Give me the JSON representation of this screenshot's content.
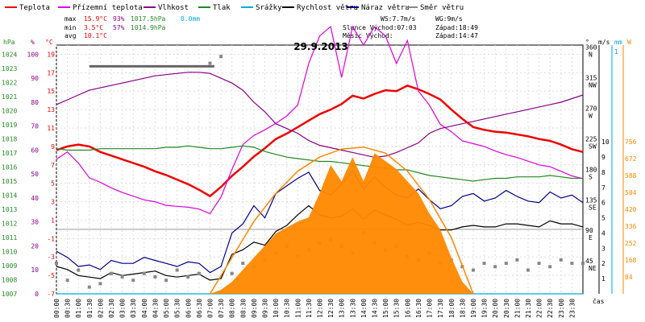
{
  "legend": [
    {
      "label": "Teplota",
      "color": "#ee0000"
    },
    {
      "label": "Přízemní teplota",
      "color": "#dd00dd"
    },
    {
      "label": "Vlhkost",
      "color": "#880088"
    },
    {
      "label": "Tlak",
      "color": "#228822"
    },
    {
      "label": "Srážky",
      "color": "#00aadd"
    },
    {
      "label": "Rychlost větru",
      "color": "#000000"
    },
    {
      "label": "Náraz větru",
      "color": "#000088"
    },
    {
      "label": "Směr větru",
      "color": "#888888"
    }
  ],
  "stats": {
    "max_label": "max",
    "max_temp": "15.9°C",
    "max_hum": "93%",
    "max_press": "1017.5hPa",
    "max_rain": "0.0mm",
    "min_label": "min",
    "min_temp": "3.5°C",
    "min_hum": "57%",
    "min_press": "1014.9hPa",
    "avg_label": "avg",
    "avg_temp": "10.1°C"
  },
  "wind_info": {
    "ws": "WS:7.7m/s",
    "wg": "WG:9m/s"
  },
  "sun_info": {
    "sunrise": "Slunce Východ:07:03",
    "sunset": "Západ:18:49"
  },
  "moon_info": {
    "moonrise": "Měsíc  Východ:",
    "moonset": "Západ:14:47"
  },
  "date_title": "29.9.2013",
  "axis_units": {
    "hpa": "hPa",
    "pct": "%",
    "degc": "°C",
    "deg": "°",
    "ms": "m/s",
    "mm": "mm",
    "w": "W",
    "time": "čas"
  },
  "chart_data": {
    "type": "line",
    "title": "29.9.2013",
    "x_ticks": [
      "00:00",
      "00:30",
      "01:00",
      "01:30",
      "02:00",
      "02:30",
      "03:00",
      "03:30",
      "04:00",
      "04:30",
      "05:00",
      "05:30",
      "06:00",
      "06:30",
      "07:00",
      "07:30",
      "08:00",
      "08:30",
      "09:00",
      "09:30",
      "10:00",
      "10:30",
      "11:00",
      "11:30",
      "12:00",
      "12:30",
      "13:00",
      "13:30",
      "14:00",
      "14:30",
      "15:00",
      "15:30",
      "16:00",
      "16:30",
      "17:00",
      "17:30",
      "18:00",
      "18:30",
      "19:00",
      "19:30",
      "20:00",
      "20:30",
      "21:00",
      "21:30",
      "22:00",
      "22:30",
      "23:00",
      "23:30"
    ],
    "axes": {
      "hpa": {
        "ticks": [
          1024,
          1023,
          1022,
          1021,
          1020,
          1019,
          1018,
          1017,
          1016,
          1015,
          1014,
          1013,
          1012,
          1011,
          1010,
          1009,
          1008,
          1007
        ],
        "ylim": [
          1007,
          1024
        ]
      },
      "pct": {
        "ticks": [
          100,
          90,
          80,
          70,
          60,
          50,
          40,
          30,
          20,
          10,
          0
        ],
        "ylim": [
          0,
          100
        ]
      },
      "temp": {
        "ticks": [
          19,
          17,
          15,
          13,
          11,
          9,
          7,
          5,
          3,
          1,
          -1,
          -3,
          -5,
          -7
        ],
        "ylim": [
          -7,
          20
        ]
      },
      "dir": {
        "ticks": [
          "360 N",
          "315 NW",
          "270 W",
          "225 SW",
          "180 S",
          "135 SE",
          "90 E",
          "45 NE"
        ]
      },
      "ms": {
        "ticks": [
          10,
          9,
          8,
          7,
          6,
          5,
          4,
          3,
          2,
          1
        ],
        "ylim": [
          0,
          10
        ]
      },
      "mm": {
        "ticks": [
          1
        ],
        "ylim": [
          0,
          1
        ]
      },
      "w": {
        "ticks": [
          756,
          672,
          588,
          504,
          420,
          336,
          252,
          168,
          84
        ],
        "ylim": [
          0,
          800
        ]
      }
    },
    "series": [
      {
        "name": "Teplota",
        "color": "#ee0000",
        "axis": "temp",
        "x": [
          0,
          0.5,
          1,
          1.5,
          2,
          2.5,
          3,
          3.5,
          4,
          4.5,
          5,
          5.5,
          6,
          6.5,
          7,
          7.5,
          8,
          8.5,
          9,
          9.5,
          10,
          10.5,
          11,
          11.5,
          12,
          12.5,
          13,
          13.5,
          14,
          14.5,
          15,
          15.5,
          16,
          16.5,
          17,
          17.5,
          18,
          18.5,
          19,
          19.5,
          20,
          20.5,
          21,
          21.5,
          22,
          22.5,
          23,
          23.5,
          24
        ],
        "y": [
          8.6,
          9,
          9.2,
          9,
          8.4,
          8,
          7.6,
          7.2,
          6.8,
          6.3,
          5.9,
          5.4,
          4.9,
          4.3,
          3.6,
          4.6,
          5.8,
          6.8,
          7.9,
          8.8,
          9.8,
          10.4,
          11.1,
          11.8,
          12.5,
          13,
          13.6,
          14.5,
          14.2,
          14.7,
          15.1,
          15,
          15.6,
          15.2,
          14.7,
          14.1,
          13,
          12,
          11.1,
          10.8,
          10.6,
          10.5,
          10.3,
          10.1,
          9.8,
          9.6,
          9.2,
          8.7,
          8.4
        ]
      },
      {
        "name": "Přízemní teplota",
        "color": "#dd00dd",
        "axis": "temp",
        "x": [
          0,
          0.5,
          1,
          1.5,
          2,
          2.5,
          3,
          3.5,
          4,
          4.5,
          5,
          5.5,
          6,
          6.5,
          7,
          7.5,
          8,
          8.5,
          9,
          9.5,
          10,
          10.5,
          11,
          11.5,
          12,
          12.5,
          13,
          13.5,
          14,
          14.5,
          15,
          15.5,
          16,
          16.5,
          17,
          17.5,
          18,
          18.5,
          19,
          19.5,
          20,
          20.5,
          21,
          21.5,
          22,
          22.5,
          23,
          23.5,
          24
        ],
        "y": [
          7.6,
          8.4,
          7.2,
          5.6,
          5.1,
          4.5,
          4,
          3.6,
          3.2,
          3,
          2.6,
          2.5,
          2.4,
          2.2,
          1.7,
          3.5,
          6.5,
          9.2,
          10.2,
          10.8,
          11.5,
          12.3,
          13.5,
          18,
          21,
          22,
          16.5,
          22,
          20,
          22,
          21,
          18,
          20.5,
          15,
          13.5,
          11.4,
          10.6,
          9.6,
          9.3,
          9,
          8.5,
          8.1,
          7.8,
          7.4,
          7,
          6.8,
          6.3,
          5.8,
          5.5
        ]
      },
      {
        "name": "Vlhkost",
        "color": "#880088",
        "axis": "pct",
        "x": [
          0,
          0.5,
          1,
          1.5,
          2,
          2.5,
          3,
          3.5,
          4,
          4.5,
          5,
          5.5,
          6,
          6.5,
          7,
          7.5,
          8,
          8.5,
          9,
          9.5,
          10,
          10.5,
          11,
          11.5,
          12,
          12.5,
          13,
          13.5,
          14,
          14.5,
          15,
          15.5,
          16,
          16.5,
          17,
          17.5,
          18,
          18.5,
          19,
          19.5,
          20,
          20.5,
          21,
          21.5,
          22,
          22.5,
          23,
          23.5,
          24
        ],
        "y": [
          79,
          81,
          83,
          85,
          86,
          87,
          88,
          89,
          90,
          91,
          91.5,
          92,
          92.5,
          92.5,
          92,
          90,
          88,
          85,
          80,
          76,
          71,
          69,
          67,
          64,
          62,
          61,
          60,
          59,
          58,
          57,
          57.5,
          59,
          61,
          63,
          67,
          69,
          70,
          71,
          72,
          73,
          74,
          75,
          76,
          77,
          78,
          79,
          80,
          81.5,
          83
        ]
      },
      {
        "name": "Tlak",
        "color": "#228822",
        "axis": "hpa",
        "x": [
          0,
          0.5,
          1,
          1.5,
          2,
          2.5,
          3,
          3.5,
          4,
          4.5,
          5,
          5.5,
          6,
          6.5,
          7,
          7.5,
          8,
          8.5,
          9,
          9.5,
          10,
          10.5,
          11,
          11.5,
          12,
          12.5,
          13,
          13.5,
          14,
          14.5,
          15,
          15.5,
          16,
          16.5,
          17,
          17.5,
          18,
          18.5,
          19,
          19.5,
          20,
          20.5,
          21,
          21.5,
          22,
          22.5,
          23,
          23.5,
          24
        ],
        "y": [
          1017.3,
          1017.2,
          1017.2,
          1017.2,
          1017.3,
          1017.3,
          1017.3,
          1017.3,
          1017.3,
          1017.3,
          1017.4,
          1017.4,
          1017.5,
          1017.4,
          1017.3,
          1017.3,
          1017.4,
          1017.5,
          1017.4,
          1017.1,
          1016.9,
          1016.7,
          1016.6,
          1016.5,
          1016.4,
          1016.4,
          1016.3,
          1016.2,
          1016.1,
          1016,
          1015.9,
          1015.8,
          1015.8,
          1015.6,
          1015.4,
          1015.3,
          1015.2,
          1015.1,
          1015,
          1015.1,
          1015.2,
          1015.2,
          1015.3,
          1015.3,
          1015.3,
          1015.4,
          1015.3,
          1015.2,
          1015.2
        ]
      },
      {
        "name": "Rychlost větru",
        "color": "#000000",
        "axis": "ms",
        "x": [
          0,
          0.5,
          1,
          1.5,
          2,
          2.5,
          3,
          3.5,
          4,
          4.5,
          5,
          5.5,
          6,
          6.5,
          7,
          7.5,
          8,
          8.5,
          9,
          9.5,
          10,
          10.5,
          11,
          11.5,
          12,
          12.5,
          13,
          13.5,
          14,
          14.5,
          15,
          15.5,
          16,
          16.5,
          17,
          17.5,
          18,
          18.5,
          19,
          19.5,
          20,
          20.5,
          21,
          21.5,
          22,
          22.5,
          23,
          23.5,
          24
        ],
        "y": [
          1.8,
          1.6,
          1.2,
          1.1,
          1,
          1.4,
          1.2,
          1.3,
          1.4,
          1.5,
          1.2,
          1.1,
          1.2,
          1.3,
          0.9,
          1,
          2.6,
          2.9,
          3.4,
          3.2,
          4.1,
          4.5,
          5.2,
          5.8,
          5.2,
          5,
          5.1,
          5.6,
          4.9,
          5.5,
          5.2,
          4.9,
          4.5,
          4.7,
          4.5,
          4.2,
          4.2,
          4.4,
          4.5,
          4.4,
          4.4,
          4.6,
          4.6,
          4.5,
          4.4,
          4.8,
          4.6,
          4.6,
          4.4
        ]
      },
      {
        "name": "Náraz větru",
        "color": "#000088",
        "axis": "ms",
        "x": [
          0,
          0.5,
          1,
          1.5,
          2,
          2.5,
          3,
          3.5,
          4,
          4.5,
          5,
          5.5,
          6,
          6.5,
          7,
          7.5,
          8,
          8.5,
          9,
          9.5,
          10,
          10.5,
          11,
          11.5,
          12,
          12.5,
          13,
          13.5,
          14,
          14.5,
          15,
          15.5,
          16,
          16.5,
          17,
          17.5,
          18,
          18.5,
          19,
          19.5,
          20,
          20.5,
          21,
          21.5,
          22,
          22.5,
          23,
          23.5,
          24
        ],
        "y": [
          2.8,
          2.4,
          1.8,
          1.9,
          1.6,
          2.2,
          2,
          2,
          2.4,
          2.2,
          2,
          1.8,
          2.1,
          2,
          1.4,
          1.8,
          4,
          4.6,
          5.8,
          5,
          6.6,
          7.1,
          7.6,
          8,
          6.8,
          6.5,
          7.2,
          8.1,
          6.9,
          7.7,
          7,
          6.5,
          6.3,
          6.9,
          6.2,
          5.6,
          5.8,
          6.4,
          6.6,
          6.1,
          6.3,
          6.8,
          6.4,
          6.1,
          6,
          6.7,
          6.3,
          6.5,
          6
        ]
      },
      {
        "name": "Směr větru",
        "color": "#888888",
        "axis": "deg",
        "x": [
          0,
          0.5,
          1,
          1.5,
          2,
          2.5,
          3,
          3.5,
          4,
          4.5,
          5,
          5.5,
          6,
          6.5,
          7,
          7.5,
          8,
          8.5,
          9,
          9.5,
          10,
          10.5,
          11,
          11.5,
          12,
          12.5,
          13,
          13.5,
          14,
          14.5,
          15,
          15.5,
          16,
          16.5,
          17,
          17.5,
          18,
          18.5,
          19,
          19.5,
          20,
          20.5,
          21,
          21.5,
          22,
          22.5,
          23,
          23.5,
          24
        ],
        "y": [
          45,
          20,
          35,
          10,
          15,
          30,
          25,
          20,
          30,
          25,
          20,
          35,
          25,
          30,
          340,
          350,
          30,
          45,
          40,
          50,
          60,
          70,
          55,
          65,
          75,
          80,
          70,
          60,
          90,
          75,
          65,
          70,
          55,
          50,
          60,
          45,
          50,
          40,
          35,
          45,
          40,
          45,
          50,
          35,
          45,
          40,
          50,
          45,
          45
        ]
      },
      {
        "name": "Srážky",
        "color": "#00aadd",
        "axis": "mm",
        "x": [
          0,
          24
        ],
        "y": [
          0,
          0
        ]
      },
      {
        "name": "Solar",
        "color": "#ff8800",
        "axis": "w",
        "type": "area",
        "x": [
          7,
          7.5,
          8,
          8.5,
          9,
          9.5,
          10,
          10.5,
          11,
          11.5,
          12,
          12.5,
          13,
          13.5,
          14,
          14.5,
          15,
          15.5,
          16,
          16.5,
          17,
          17.5,
          18,
          18.5,
          19
        ],
        "y": [
          0,
          20,
          60,
          120,
          180,
          240,
          300,
          330,
          360,
          380,
          500,
          640,
          560,
          680,
          560,
          700,
          660,
          620,
          560,
          500,
          400,
          320,
          180,
          60,
          0
        ]
      },
      {
        "name": "Max solar",
        "color": "#ff8800",
        "axis": "w",
        "type": "line",
        "x": [
          7,
          8,
          9,
          10,
          11,
          12,
          13,
          14,
          15,
          16,
          17,
          18,
          19
        ],
        "y": [
          0,
          180,
          360,
          500,
          610,
          680,
          720,
          730,
          700,
          610,
          470,
          280,
          0
        ]
      }
    ]
  }
}
